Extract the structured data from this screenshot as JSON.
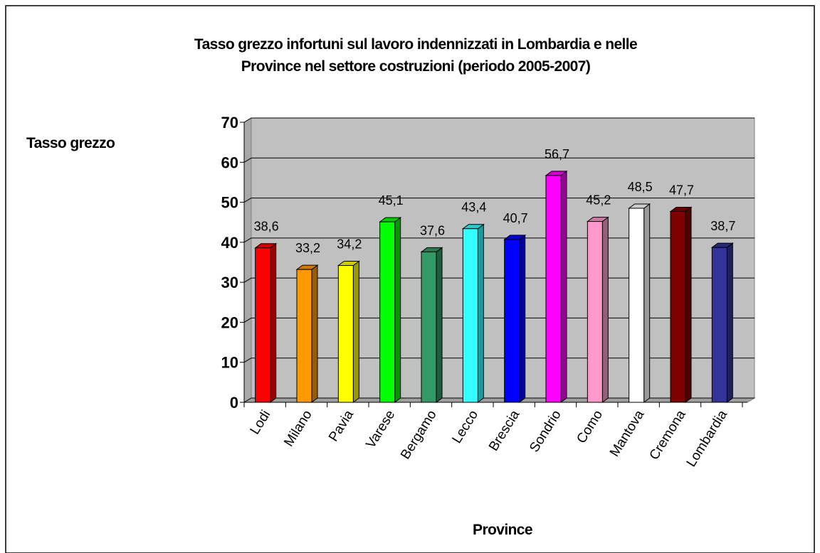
{
  "chart_data": {
    "type": "bar3d",
    "title": [
      "Tasso grezzo infortuni sul lavoro indennizzati in Lombardia e nelle",
      "Province nel settore costruzioni (periodo 2005-2007)"
    ],
    "ylabel": "Tasso grezzo",
    "xlabel": "Province",
    "categories": [
      "Lodi",
      "Milano",
      "Pavia",
      "Varese",
      "Bergamo",
      "Lecco",
      "Brescia",
      "Sondrio",
      "Como",
      "Mantova",
      "Cremona",
      "Lombardia"
    ],
    "values": [
      38.6,
      33.2,
      34.2,
      45.1,
      37.6,
      43.4,
      40.7,
      56.7,
      45.2,
      48.5,
      47.7,
      38.7
    ],
    "value_labels": [
      "38,6",
      "33,2",
      "34,2",
      "45,1",
      "37,6",
      "43,4",
      "40,7",
      "56,7",
      "45,2",
      "48,5",
      "47,7",
      "38,7"
    ],
    "colors": [
      "#ff0000",
      "#ff9900",
      "#ffff00",
      "#00ff00",
      "#339966",
      "#33ffff",
      "#0000ff",
      "#ff00ff",
      "#ff99cc",
      "#ffffff",
      "#800000",
      "#333399"
    ],
    "ylim": [
      0,
      70
    ],
    "yticks": [
      0,
      10,
      20,
      30,
      40,
      50,
      60,
      70
    ],
    "grid": true
  }
}
